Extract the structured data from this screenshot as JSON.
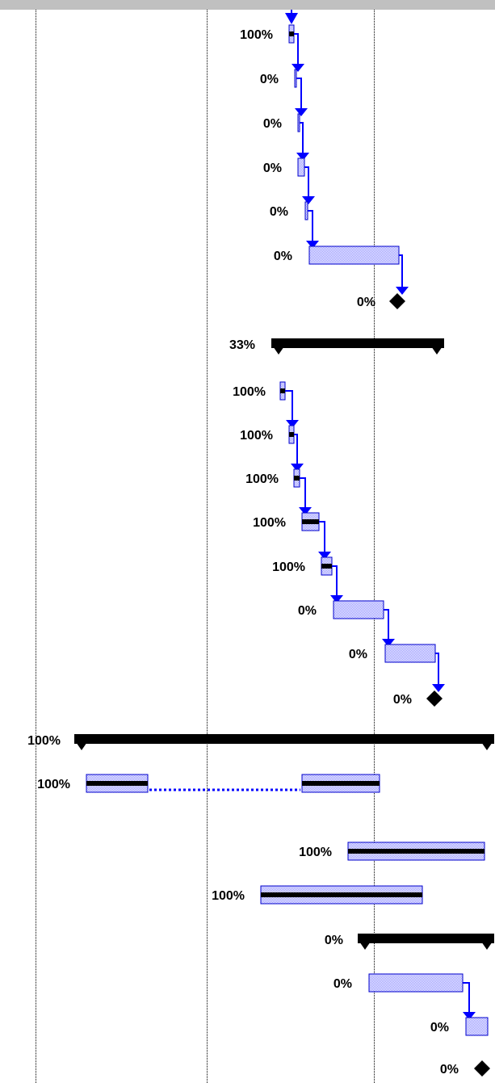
{
  "colors": {
    "task_fill": "#8c8cff",
    "task_border": "#0000cc",
    "progress": "#000000",
    "link": "#0000ff",
    "summary": "#000000",
    "milestone": "#000000",
    "gridline": "#000000",
    "header_strip": "#c0c0c0"
  },
  "gridlines": [
    {
      "name": "timescale-divider-1"
    },
    {
      "name": "timescale-divider-2"
    },
    {
      "name": "timescale-divider-3"
    }
  ],
  "rows": [
    {
      "kind": "task",
      "complete": "100%"
    },
    {
      "kind": "task",
      "complete": "0%"
    },
    {
      "kind": "task",
      "complete": "0%"
    },
    {
      "kind": "task",
      "complete": "0%"
    },
    {
      "kind": "task",
      "complete": "0%"
    },
    {
      "kind": "task",
      "complete": "0%"
    },
    {
      "kind": "milestone",
      "complete": "0%"
    },
    {
      "kind": "summary",
      "complete": "33%"
    },
    {
      "kind": "task",
      "complete": "100%"
    },
    {
      "kind": "task",
      "complete": "100%"
    },
    {
      "kind": "task",
      "complete": "100%"
    },
    {
      "kind": "task",
      "complete": "100%"
    },
    {
      "kind": "task",
      "complete": "100%"
    },
    {
      "kind": "task",
      "complete": "0%"
    },
    {
      "kind": "task",
      "complete": "0%"
    },
    {
      "kind": "milestone",
      "complete": "0%"
    },
    {
      "kind": "summary",
      "complete": "100%"
    },
    {
      "kind": "split-task",
      "complete": "100%"
    },
    {
      "kind": "task",
      "complete": "100%"
    },
    {
      "kind": "task",
      "complete": "100%"
    },
    {
      "kind": "summary",
      "complete": "0%"
    },
    {
      "kind": "task",
      "complete": "0%"
    },
    {
      "kind": "task",
      "complete": "0%"
    },
    {
      "kind": "milestone",
      "complete": "0%"
    }
  ]
}
